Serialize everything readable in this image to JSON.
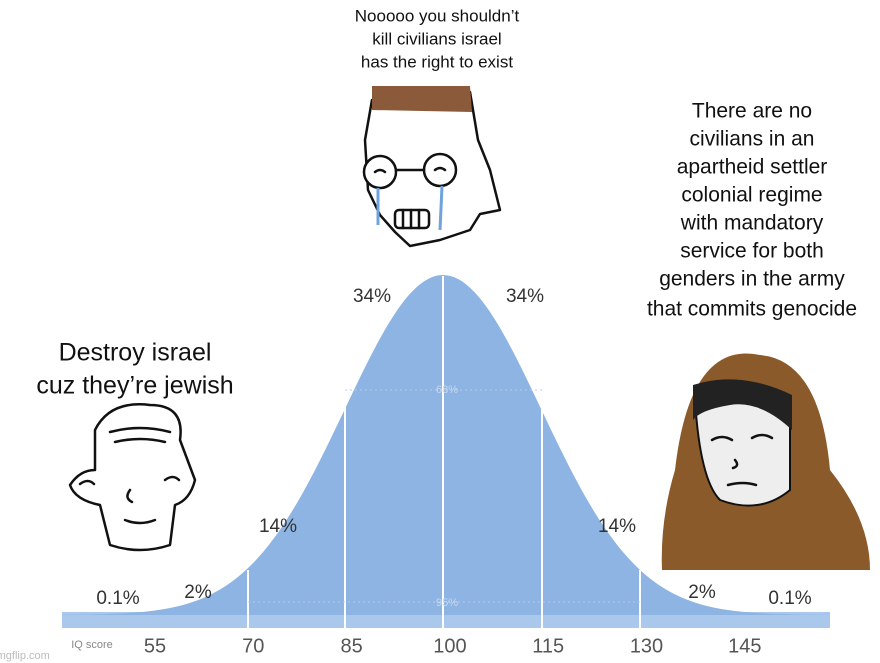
{
  "captions": {
    "top": [
      "Nooooo you shouldn’t",
      "kill civilians israel",
      "has the right to exist"
    ],
    "right": [
      "There are no",
      "civilians in an",
      "apartheid settler",
      "colonial regime",
      "with mandatory",
      "service for both",
      "genders in the army",
      "that commits genocide"
    ],
    "left": [
      "Destroy israel",
      "cuz they’re jewish"
    ]
  },
  "curve_labels": [
    "34%",
    "34%",
    "68%",
    "14%",
    "14%",
    "2%",
    "2%",
    "0.1%",
    "0.1%",
    "95%"
  ],
  "axis": {
    "title": "IQ score",
    "ticks": [
      "55",
      "70",
      "85",
      "100",
      "115",
      "130",
      "145"
    ]
  },
  "watermark": "imgflip.com"
}
